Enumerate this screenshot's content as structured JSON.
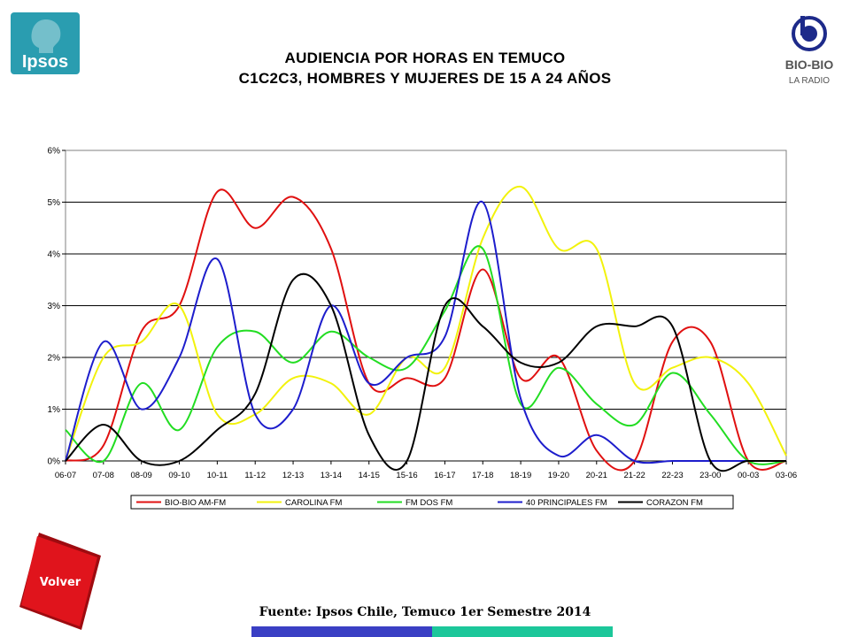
{
  "header": {
    "ipsos_logo_text": "Ipsos",
    "biobio_logo_text": "BIO-BIO",
    "biobio_logo_subtext": "LA RADIO",
    "title_line1": "AUDIENCIA POR HORAS EN TEMUCO",
    "title_line2": "C1C2C3, HOMBRES Y MUJERES DE 15 A 24 AÑOS"
  },
  "footer": {
    "volver_label": "Volver",
    "source": "Fuente: Ipsos Chile, Temuco 1er Semestre 2014"
  },
  "colors": {
    "ipsos_brand": "#2a9db0",
    "volver_red": "#e0141c",
    "bar_blue": "#3a3fc4",
    "bar_teal": "#1cc79a"
  },
  "chart_data": {
    "type": "line",
    "title": "",
    "xlabel": "",
    "ylabel": "",
    "ylim": [
      0,
      6
    ],
    "y_unit": "%",
    "yticks": [
      "0%",
      "1%",
      "2%",
      "3%",
      "4%",
      "5%",
      "6%"
    ],
    "grid": "horizontal",
    "legend_position": "bottom",
    "categories": [
      "06-07",
      "07-08",
      "08-09",
      "09-10",
      "10-11",
      "11-12",
      "12-13",
      "13-14",
      "14-15",
      "15-16",
      "16-17",
      "17-18",
      "18-19",
      "19-20",
      "20-21",
      "21-22",
      "22-23",
      "23-00",
      "00-03",
      "03-06"
    ],
    "series": [
      {
        "name": "BIO-BIO AM-FM",
        "color": "#e01010",
        "values": [
          0.0,
          0.3,
          2.5,
          3.0,
          5.2,
          4.5,
          5.1,
          4.1,
          1.5,
          1.6,
          1.6,
          3.7,
          1.6,
          2.0,
          0.2,
          0.0,
          2.3,
          2.3,
          0.0,
          0.0
        ]
      },
      {
        "name": "CAROLINA FM",
        "color": "#f2f20c",
        "values": [
          0.0,
          2.0,
          2.3,
          3.0,
          0.9,
          0.9,
          1.6,
          1.5,
          0.9,
          2.0,
          1.8,
          4.3,
          5.3,
          4.1,
          4.1,
          1.5,
          1.8,
          2.0,
          1.5,
          0.1
        ]
      },
      {
        "name": "FM DOS FM",
        "color": "#22dd22",
        "values": [
          0.6,
          0.0,
          1.5,
          0.6,
          2.2,
          2.5,
          1.9,
          2.5,
          2.0,
          1.8,
          2.9,
          4.1,
          1.1,
          1.8,
          1.1,
          0.7,
          1.7,
          0.9,
          0.0,
          0.0
        ]
      },
      {
        "name": "40 PRINCIPALES FM",
        "color": "#1d1dcc",
        "values": [
          0.0,
          2.3,
          1.0,
          2.0,
          3.9,
          0.9,
          1.0,
          3.0,
          1.5,
          2.0,
          2.4,
          5.0,
          1.2,
          0.1,
          0.5,
          0.0,
          0.0,
          0.0,
          0.0,
          0.0
        ]
      },
      {
        "name": "CORAZON FM",
        "color": "#000000",
        "values": [
          0.0,
          0.7,
          0.0,
          0.0,
          0.6,
          1.3,
          3.5,
          3.0,
          0.5,
          0.0,
          3.0,
          2.6,
          1.9,
          1.9,
          2.6,
          2.6,
          2.6,
          0.0,
          0.0,
          0.0
        ]
      }
    ]
  }
}
